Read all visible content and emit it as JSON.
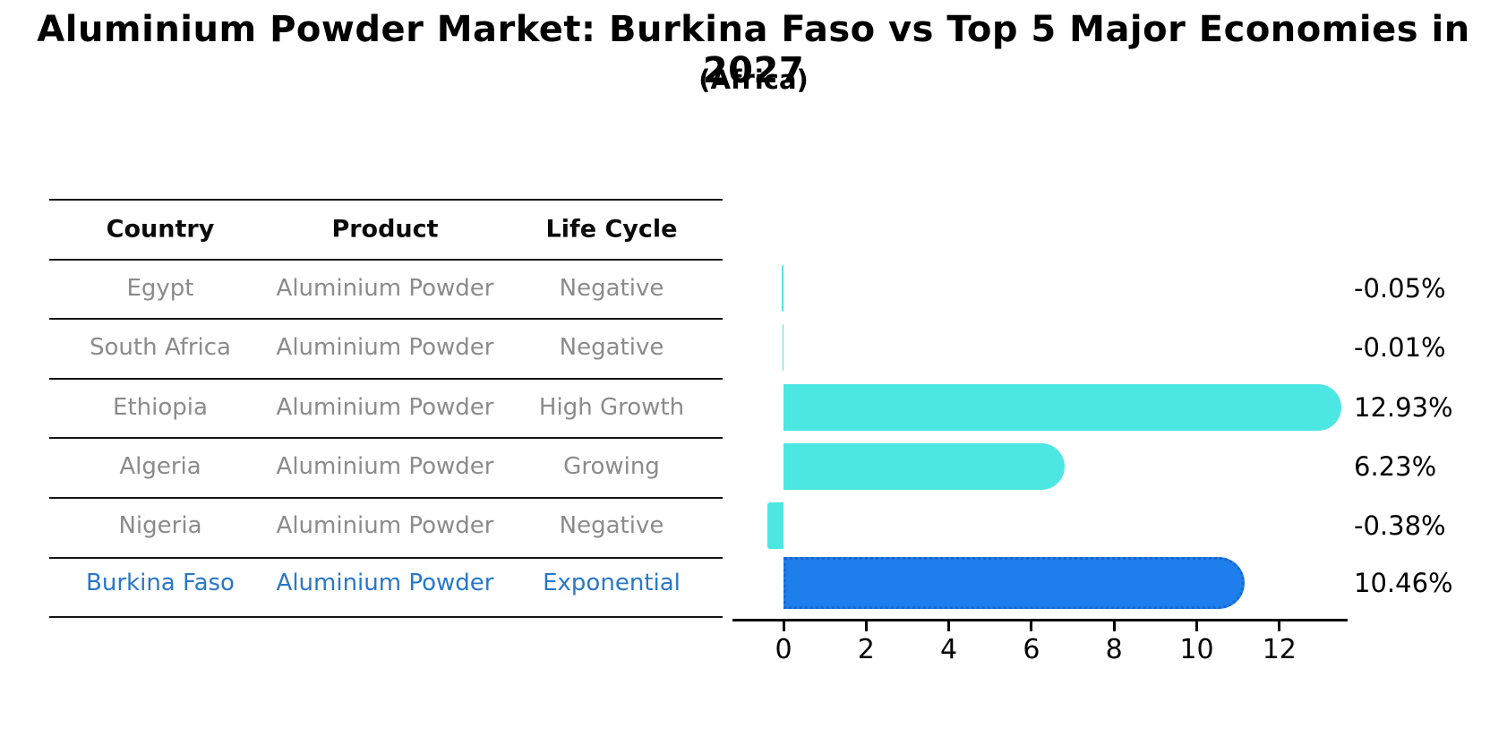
{
  "title": "Aluminium Powder Market: Burkina Faso vs Top 5 Major Economies in 2027",
  "subtitle": "(Africa)",
  "table": {
    "headers": [
      "Country",
      "Product",
      "Life Cycle"
    ],
    "rows": [
      {
        "country": "Egypt",
        "product": "Aluminium Powder",
        "life_cycle": "Negative",
        "highlight": false
      },
      {
        "country": "South Africa",
        "product": "Aluminium Powder",
        "life_cycle": "Negative",
        "highlight": false
      },
      {
        "country": "Ethiopia",
        "product": "Aluminium Powder",
        "life_cycle": "High Growth",
        "highlight": false
      },
      {
        "country": "Algeria",
        "product": "Aluminium Powder",
        "life_cycle": "Growing",
        "highlight": false
      },
      {
        "country": "Nigeria",
        "product": "Aluminium Powder",
        "life_cycle": "Negative",
        "highlight": false
      },
      {
        "country": "Burkina Faso",
        "product": "Aluminium Powder",
        "life_cycle": "Exponential",
        "highlight": true
      }
    ]
  },
  "chart_data": {
    "type": "bar",
    "orientation": "horizontal",
    "categories": [
      "Egypt",
      "South Africa",
      "Ethiopia",
      "Algeria",
      "Nigeria",
      "Burkina Faso"
    ],
    "values": [
      -0.05,
      -0.01,
      12.93,
      6.23,
      -0.38,
      10.46
    ],
    "value_labels": [
      "-0.05%",
      "-0.01%",
      "12.93%",
      "6.23%",
      "-0.38%",
      "10.46%"
    ],
    "x_ticks": [
      0,
      2,
      4,
      6,
      8,
      10,
      12
    ],
    "xlim": [
      -1.25,
      13.65
    ],
    "grid": false,
    "legend": false,
    "highlight_index": 5,
    "colors": {
      "bar_default": "#4DE7E3",
      "bar_highlight": "#1E7FEC",
      "bar_highlight_border": "#1A66CF",
      "highlight_text": "#2878C8",
      "row_text": "#8B8B8B",
      "axis": "#000000"
    }
  }
}
